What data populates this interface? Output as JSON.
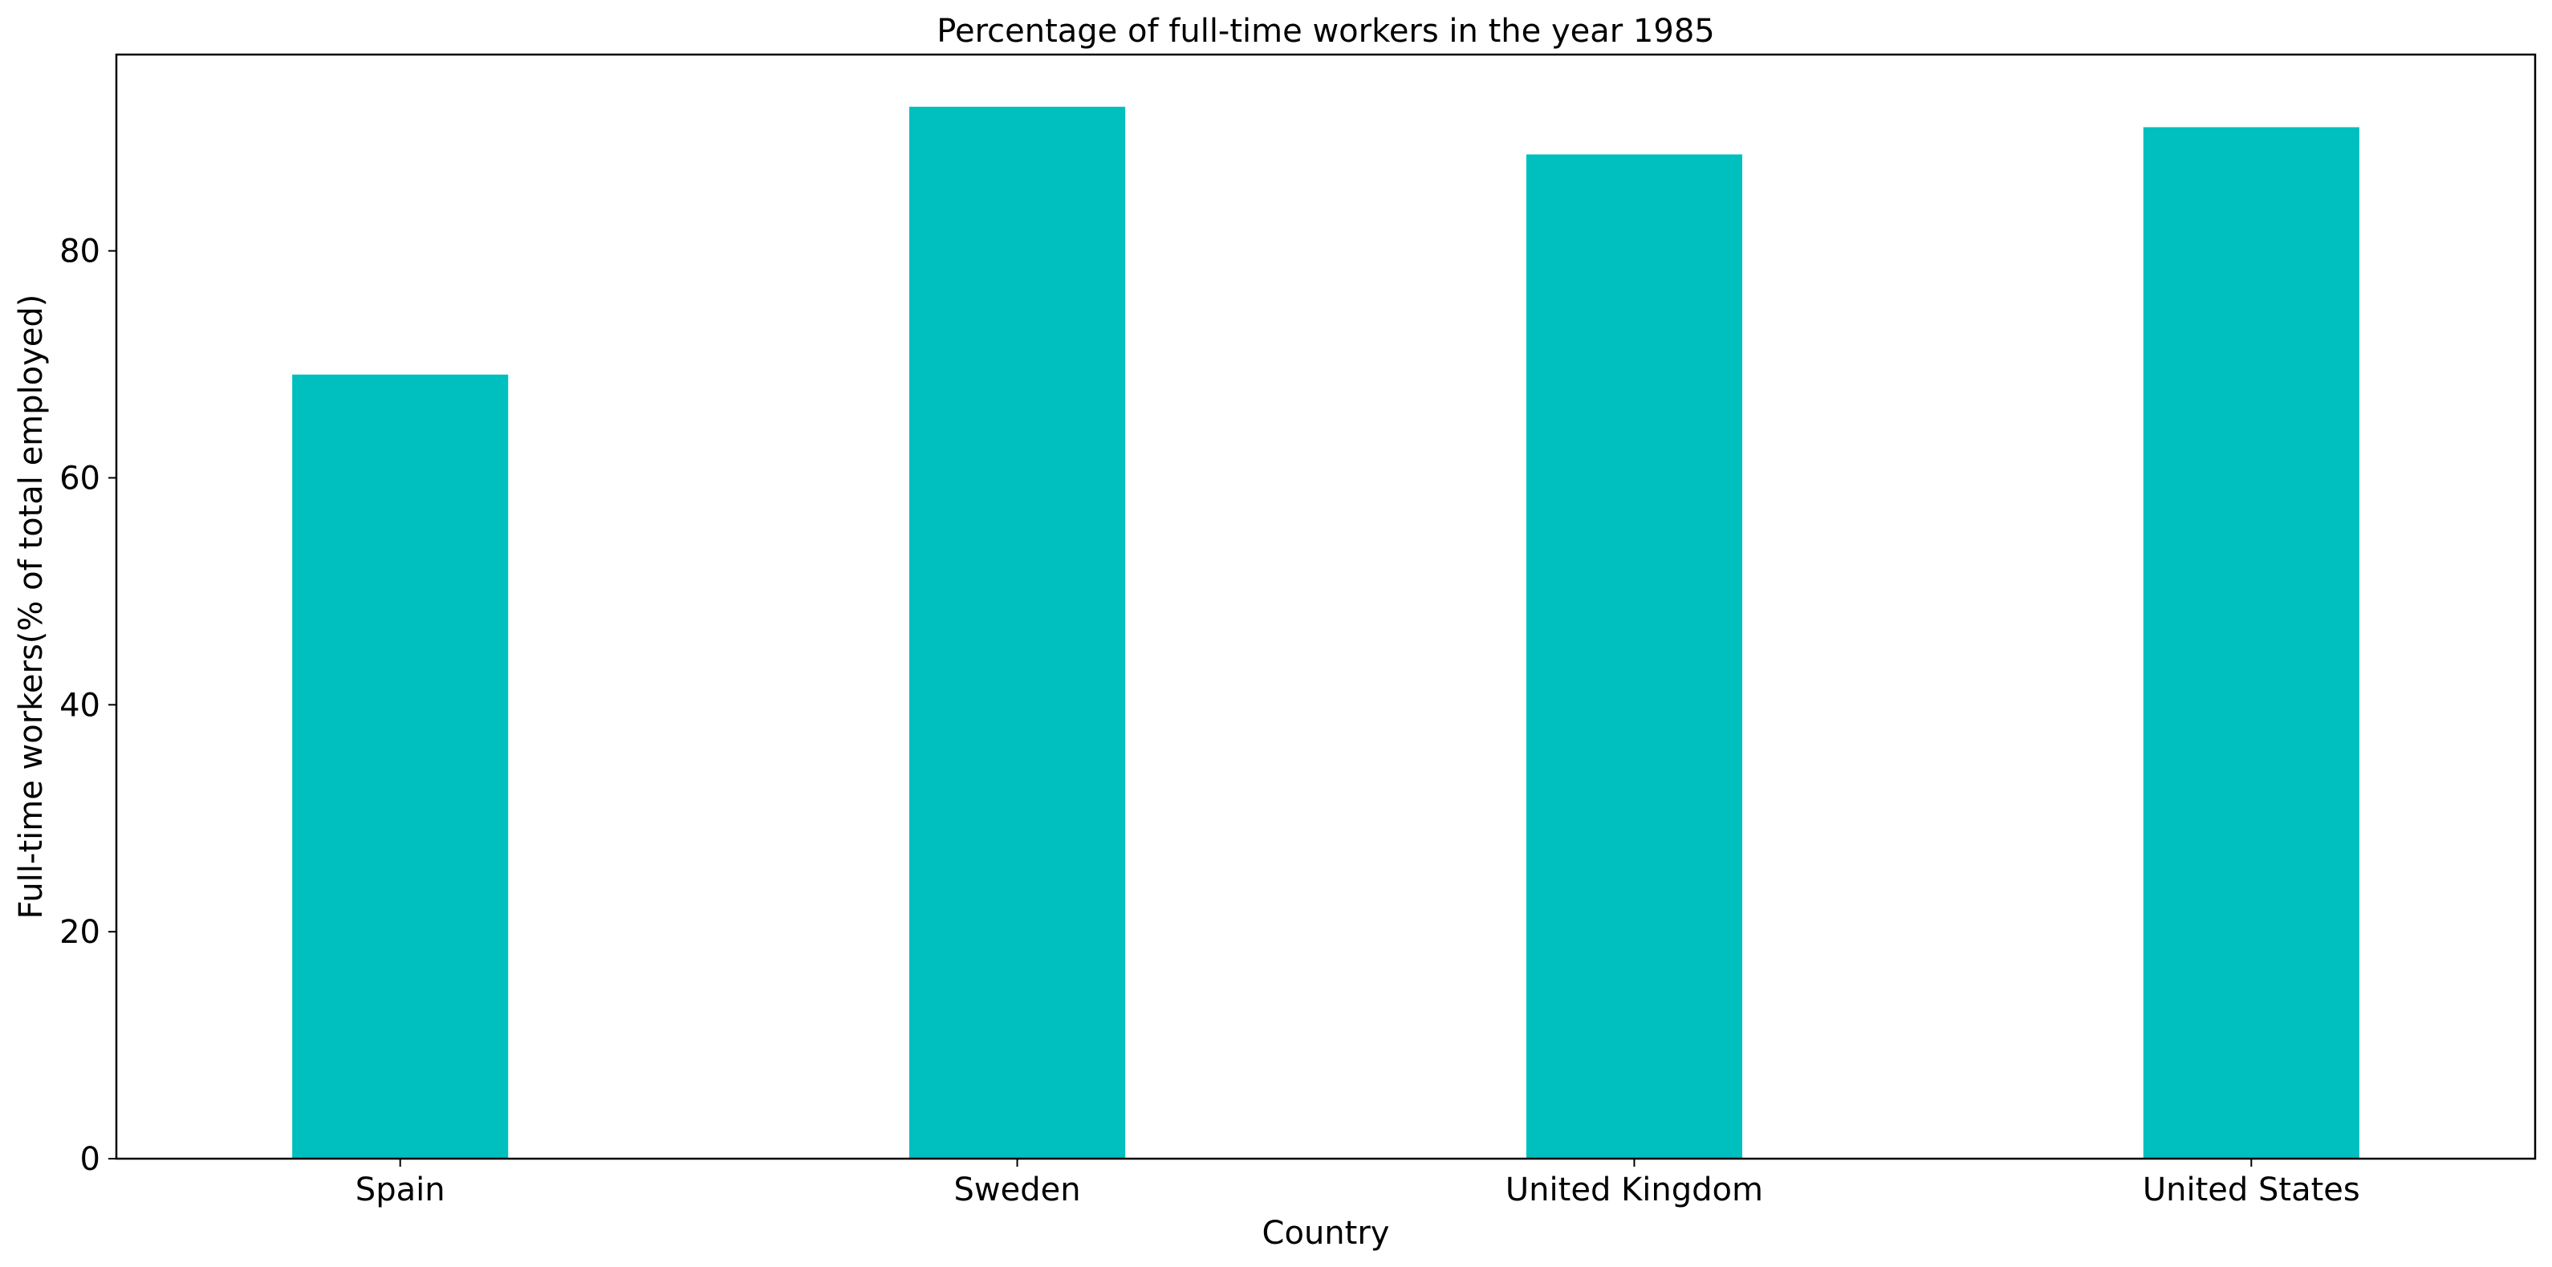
{
  "chart_data": {
    "type": "bar",
    "title": "Percentage of full-time workers in the year 1985",
    "xlabel": "Country",
    "ylabel": "Full-time workers(% of total employed)",
    "categories": [
      "Spain",
      "Sweden",
      "United Kingdom",
      "United States"
    ],
    "values": [
      69.1,
      92.7,
      88.5,
      90.9
    ],
    "ylim": [
      0,
      97.3
    ],
    "yticks": [
      "0",
      "20",
      "40",
      "60",
      "80"
    ],
    "bar_color": "#00bfbf",
    "grid": false,
    "legend": "none"
  }
}
